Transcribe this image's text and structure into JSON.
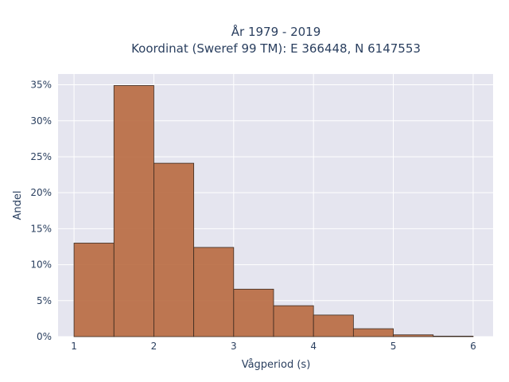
{
  "chart_data": {
    "type": "bar",
    "title_lines": [
      "År 1979 - 2019",
      "Koordinat (Sweref 99 TM): E 366448, N 6147553"
    ],
    "xlabel": "Vågperiod (s)",
    "ylabel": "Andel",
    "bins": [
      {
        "x0": 1.0,
        "x1": 1.5,
        "value": 13.0
      },
      {
        "x0": 1.5,
        "x1": 2.0,
        "value": 34.9
      },
      {
        "x0": 2.0,
        "x1": 2.5,
        "value": 24.1
      },
      {
        "x0": 2.5,
        "x1": 3.0,
        "value": 12.4
      },
      {
        "x0": 3.0,
        "x1": 3.5,
        "value": 6.6
      },
      {
        "x0": 3.5,
        "x1": 4.0,
        "value": 4.3
      },
      {
        "x0": 4.0,
        "x1": 4.5,
        "value": 3.0
      },
      {
        "x0": 4.5,
        "x1": 5.0,
        "value": 1.1
      },
      {
        "x0": 5.0,
        "x1": 5.5,
        "value": 0.25
      },
      {
        "x0": 5.5,
        "x1": 6.0,
        "value": 0.07
      }
    ],
    "xlim": [
      0.8,
      6.25
    ],
    "ylim": [
      0,
      36.5
    ],
    "x_ticks": [
      {
        "value": 1,
        "label": "1"
      },
      {
        "value": 2,
        "label": "2"
      },
      {
        "value": 3,
        "label": "3"
      },
      {
        "value": 4,
        "label": "4"
      },
      {
        "value": 5,
        "label": "5"
      },
      {
        "value": 6,
        "label": "6"
      }
    ],
    "y_ticks": [
      {
        "value": 0,
        "label": "0%"
      },
      {
        "value": 5,
        "label": "5%"
      },
      {
        "value": 10,
        "label": "10%"
      },
      {
        "value": 15,
        "label": "15%"
      },
      {
        "value": 20,
        "label": "20%"
      },
      {
        "value": 25,
        "label": "25%"
      },
      {
        "value": 30,
        "label": "30%"
      },
      {
        "value": 35,
        "label": "35%"
      }
    ],
    "grid": true,
    "colors": {
      "bar_fill": "#b8693f",
      "bar_stroke": "#3a2a20",
      "plot_bg": "#e5e5ef",
      "grid": "#ffffff",
      "text": "#2a3f5f"
    }
  }
}
